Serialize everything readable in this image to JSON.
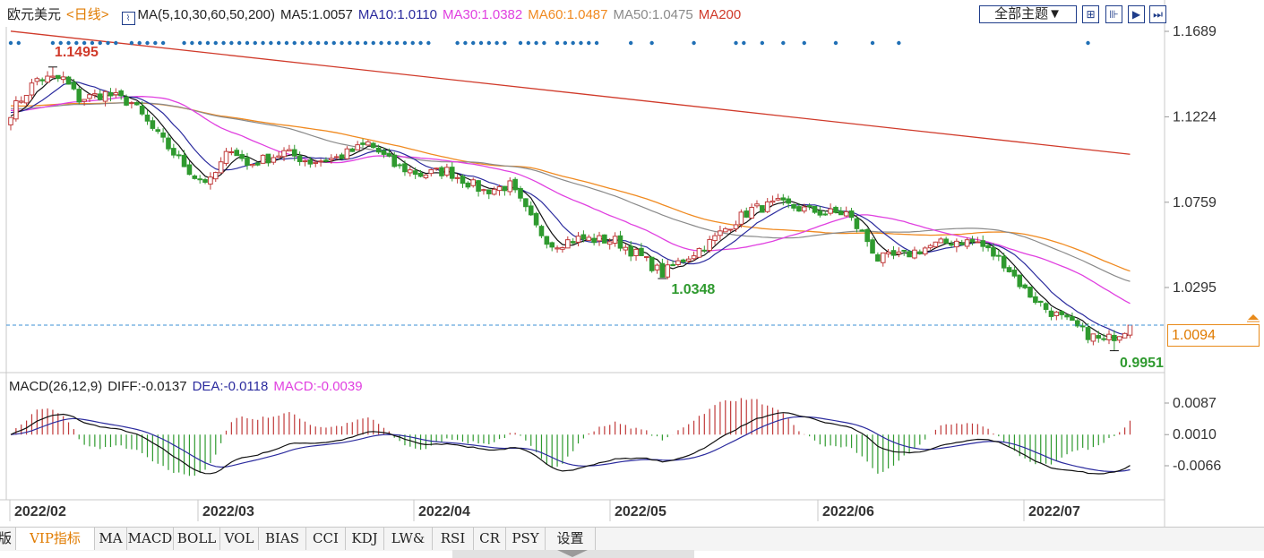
{
  "legend": {
    "symbol": "欧元美元",
    "period": "<日线>",
    "ma_title": "MA(5,10,30,60,50,200)",
    "ma5": "MA5:1.0057",
    "ma10": "MA10:1.0110",
    "ma30": "MA30:1.0382",
    "ma60": "MA60:1.0487",
    "ma50": "MA50:1.0475",
    "ma200": "MA200"
  },
  "toolbar": {
    "theme_label": "全部主题▼",
    "icons": [
      "grid-icon",
      "chart-icon",
      "play-icon",
      "next-icon"
    ]
  },
  "price_axis": {
    "ticks": [
      "1.1689",
      "1.1224",
      "1.0759",
      "1.0295"
    ],
    "current_price": "1.0094"
  },
  "annotations": {
    "high": "1.1495",
    "mid_low": "1.0348",
    "low": "0.9951"
  },
  "macd_legend": {
    "title": "MACD(26,12,9)",
    "diff": "DIFF:-0.0137",
    "dea": "DEA:-0.0118",
    "macd": "MACD:-0.0039"
  },
  "macd_axis": {
    "ticks": [
      "0.0087",
      "0.0010",
      "-0.0066"
    ]
  },
  "time_axis": {
    "labels": [
      "2022/02",
      "2022/03",
      "2022/04",
      "2022/05",
      "2022/06",
      "2022/07"
    ]
  },
  "tabs": [
    {
      "label": "版",
      "active": false
    },
    {
      "label": "VIP指标",
      "active": true
    },
    {
      "label": "MA",
      "active": false
    },
    {
      "label": "MACD",
      "active": false
    },
    {
      "label": "BOLL",
      "active": false
    },
    {
      "label": "VOL",
      "active": false
    },
    {
      "label": "BIAS",
      "active": false
    },
    {
      "label": "CCI",
      "active": false
    },
    {
      "label": "KDJ",
      "active": false
    },
    {
      "label": "LW&",
      "active": false
    },
    {
      "label": "RSI",
      "active": false
    },
    {
      "label": "CR",
      "active": false
    },
    {
      "label": "PSY",
      "active": false
    },
    {
      "label": "设置",
      "active": false
    }
  ],
  "colors": {
    "up": "#c03a3a",
    "down": "#2f9a2f",
    "ma5": "#111111",
    "ma10": "#2b2b9e",
    "ma30": "#e040e0",
    "ma60": "#f08a20",
    "ma50": "#8a8a8a",
    "ma200": "#d03a2a",
    "diff": "#111111",
    "dea": "#2b2b9e",
    "accent": "#e07b00"
  },
  "chart_data": {
    "type": "candlestick",
    "title": "欧元美元 日线",
    "y_range": [
      0.9951,
      1.1495
    ],
    "y_ticks": [
      1.1689,
      1.1224,
      1.0759,
      1.0295
    ],
    "current_price": 1.0094,
    "high": 1.1495,
    "low": 0.9951,
    "x_labels": [
      "2022/02",
      "2022/03",
      "2022/04",
      "2022/05",
      "2022/06",
      "2022/07"
    ],
    "anchors": [
      {
        "d": 0,
        "c": 1.125
      },
      {
        "d": 5,
        "c": 1.143
      },
      {
        "d": 10,
        "c": 1.143
      },
      {
        "d": 13,
        "c": 1.132
      },
      {
        "d": 18,
        "c": 1.135
      },
      {
        "d": 23,
        "c": 1.13
      },
      {
        "d": 28,
        "c": 1.112
      },
      {
        "d": 35,
        "c": 1.09
      },
      {
        "d": 38,
        "c": 1.087
      },
      {
        "d": 42,
        "c": 1.106
      },
      {
        "d": 45,
        "c": 1.096
      },
      {
        "d": 52,
        "c": 1.103
      },
      {
        "d": 57,
        "c": 1.098
      },
      {
        "d": 62,
        "c": 1.1
      },
      {
        "d": 66,
        "c": 1.105
      },
      {
        "d": 68,
        "c": 1.108
      },
      {
        "d": 73,
        "c": 1.096
      },
      {
        "d": 78,
        "c": 1.091
      },
      {
        "d": 83,
        "c": 1.093
      },
      {
        "d": 90,
        "c": 1.082
      },
      {
        "d": 95,
        "c": 1.085
      },
      {
        "d": 100,
        "c": 1.062
      },
      {
        "d": 103,
        "c": 1.053
      },
      {
        "d": 108,
        "c": 1.056
      },
      {
        "d": 115,
        "c": 1.055
      },
      {
        "d": 120,
        "c": 1.046
      },
      {
        "d": 124,
        "c": 1.037
      },
      {
        "d": 127,
        "c": 1.043
      },
      {
        "d": 133,
        "c": 1.054
      },
      {
        "d": 137,
        "c": 1.064
      },
      {
        "d": 141,
        "c": 1.072
      },
      {
        "d": 146,
        "c": 1.075
      },
      {
        "d": 151,
        "c": 1.072
      },
      {
        "d": 155,
        "c": 1.07
      },
      {
        "d": 159,
        "c": 1.07
      },
      {
        "d": 163,
        "c": 1.055
      },
      {
        "d": 165,
        "c": 1.045
      },
      {
        "d": 170,
        "c": 1.047
      },
      {
        "d": 175,
        "c": 1.052
      },
      {
        "d": 180,
        "c": 1.055
      },
      {
        "d": 184,
        "c": 1.054
      },
      {
        "d": 189,
        "c": 1.043
      },
      {
        "d": 193,
        "c": 1.028
      },
      {
        "d": 197,
        "c": 1.018
      },
      {
        "d": 201,
        "c": 1.011
      },
      {
        "d": 205,
        "c": 1.004
      },
      {
        "d": 208,
        "c": 1.0
      },
      {
        "d": 211,
        "c": 1.005
      },
      {
        "d": 213,
        "c": 1.009
      }
    ],
    "ma200_line": [
      [
        0,
        1.169
      ],
      [
        213,
        1.102
      ]
    ],
    "macd": {
      "diff": -0.0137,
      "dea": -0.0118,
      "macd": -0.0039,
      "y_ticks": [
        0.0087,
        0.001,
        -0.0066
      ]
    }
  }
}
